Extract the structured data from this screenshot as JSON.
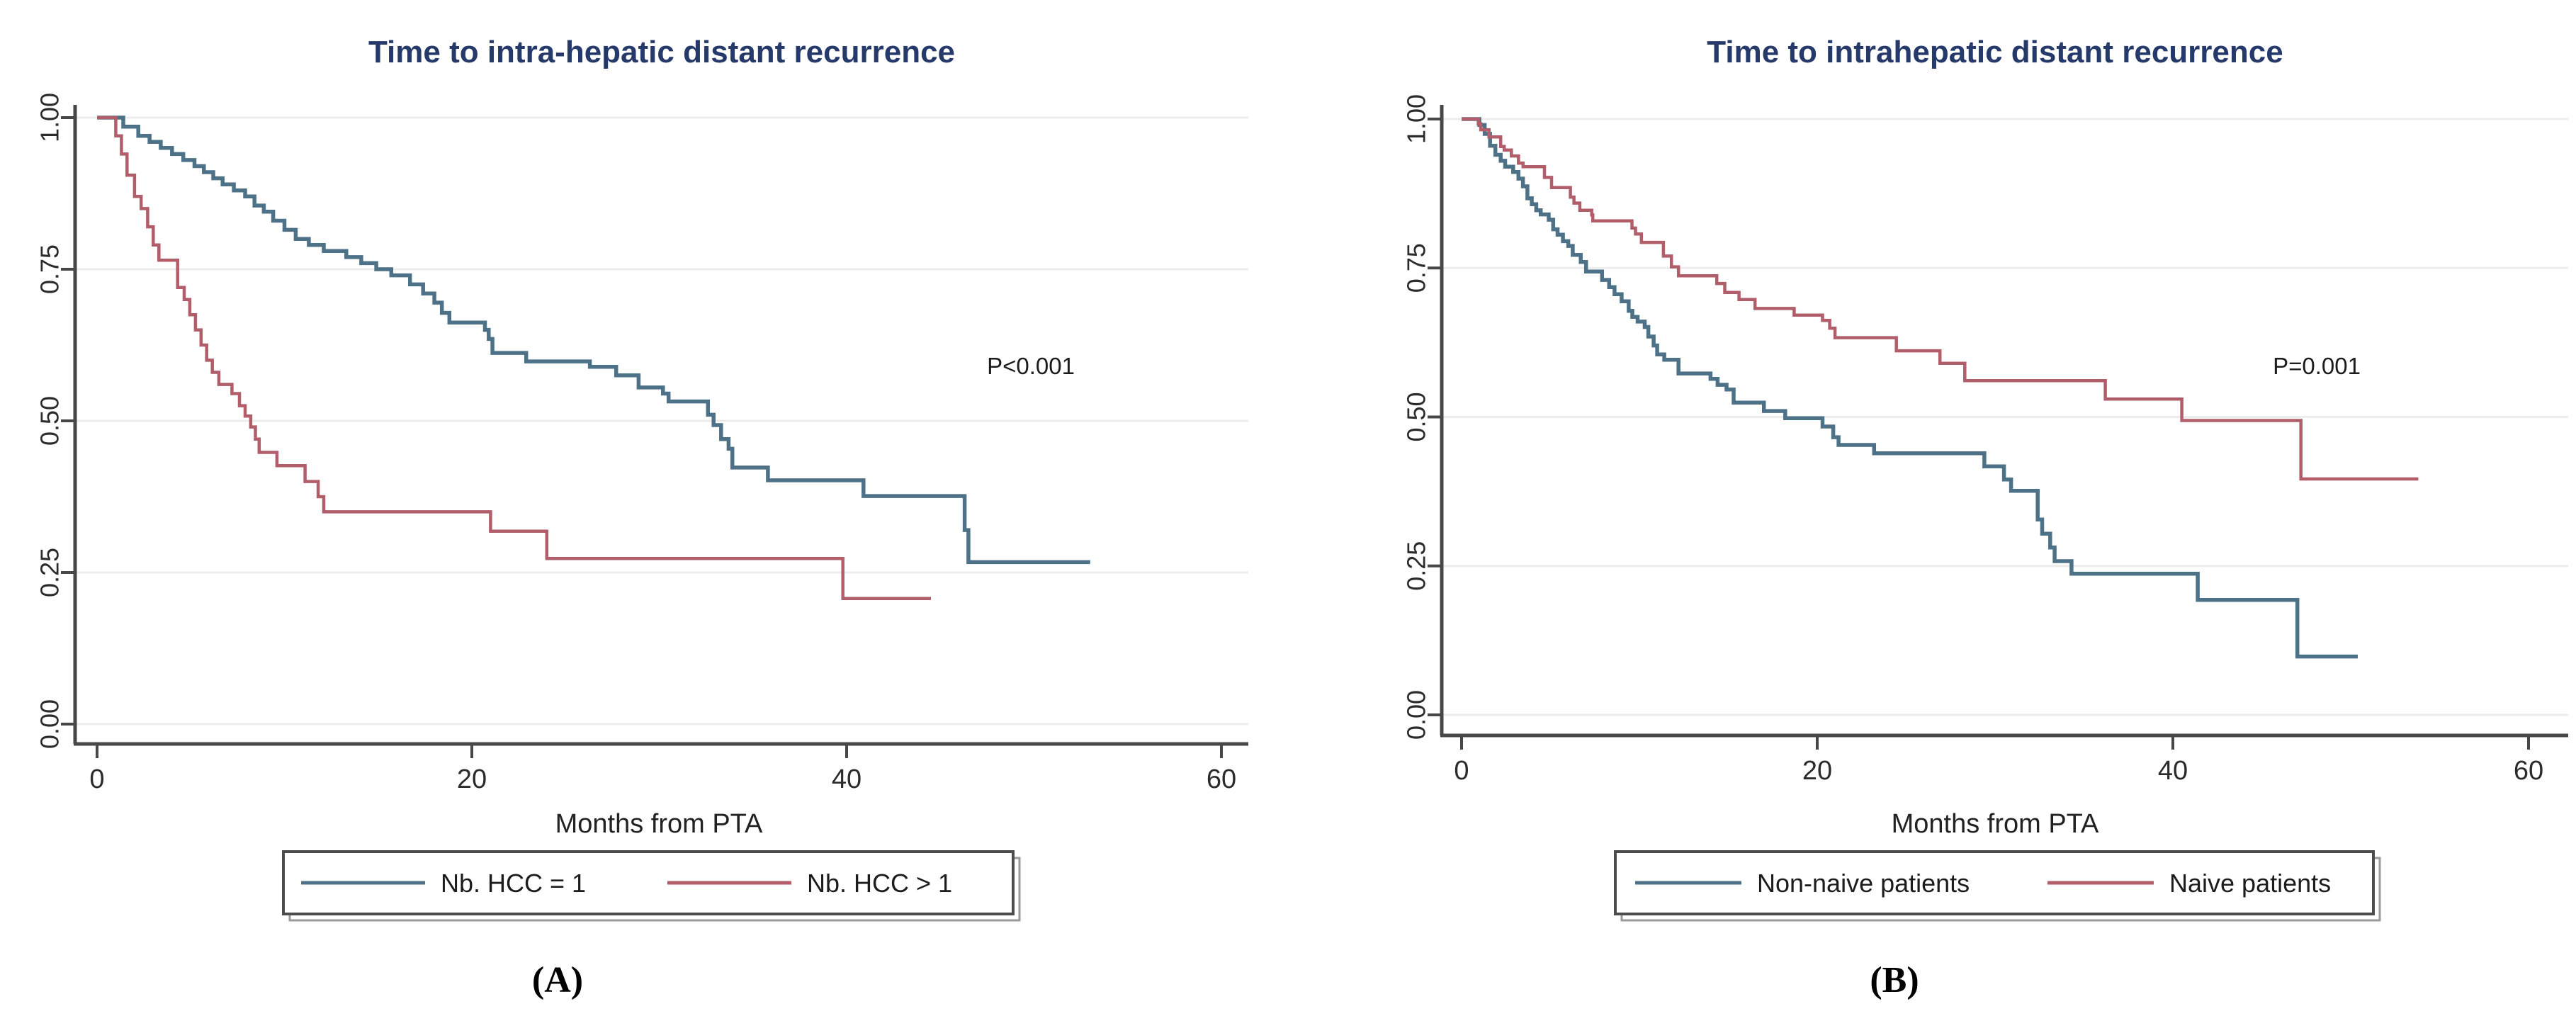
{
  "figure": {
    "background": "#ffffff",
    "title_color": "#26396b",
    "axis_color": "#474747",
    "grid_color": "#ececec",
    "text_color": "#2b2b2b",
    "legend_border": "#4c4c4c"
  },
  "captions": [
    "(A)",
    "(B)"
  ],
  "chart_data": [
    {
      "type": "line",
      "subtype": "kaplan-meier-step",
      "title": "Time to intra-hepatic distant recurrence",
      "xlabel": "Months from PTA",
      "ylabel": "",
      "p_value_text": "P<0.001",
      "xlim": [
        0,
        60
      ],
      "ylim": [
        0.0,
        1.0
      ],
      "grid": true,
      "legend_position": "bottom",
      "x_ticks": [
        0,
        20,
        40,
        60
      ],
      "x_tick_labels": [
        "0",
        "20",
        "40",
        "60"
      ],
      "y_ticks": [
        1.0,
        0.75,
        0.5,
        0.25,
        0.0
      ],
      "y_tick_labels": [
        "1.00",
        "0.75",
        "0.50",
        "0.25",
        "0.00"
      ],
      "series": [
        {
          "name": "Nb. HCC = 1",
          "color": "#4d7288",
          "end_t": 53,
          "points": [
            [
              0,
              1.0
            ],
            [
              1.4,
              0.985
            ],
            [
              2.2,
              0.97
            ],
            [
              2.8,
              0.96
            ],
            [
              3.4,
              0.95
            ],
            [
              4.0,
              0.94
            ],
            [
              4.6,
              0.93
            ],
            [
              5.2,
              0.92
            ],
            [
              5.7,
              0.91
            ],
            [
              6.2,
              0.9
            ],
            [
              6.7,
              0.89
            ],
            [
              7.3,
              0.88
            ],
            [
              7.9,
              0.87
            ],
            [
              8.4,
              0.855
            ],
            [
              8.9,
              0.845
            ],
            [
              9.4,
              0.83
            ],
            [
              10.0,
              0.815
            ],
            [
              10.6,
              0.8
            ],
            [
              11.3,
              0.79
            ],
            [
              12.1,
              0.78
            ],
            [
              13.3,
              0.77
            ],
            [
              14.1,
              0.76
            ],
            [
              14.9,
              0.75
            ],
            [
              15.7,
              0.74
            ],
            [
              16.7,
              0.725
            ],
            [
              17.4,
              0.71
            ],
            [
              18.0,
              0.695
            ],
            [
              18.4,
              0.678
            ],
            [
              18.8,
              0.662
            ],
            [
              20.7,
              0.65
            ],
            [
              20.9,
              0.635
            ],
            [
              21.1,
              0.612
            ],
            [
              22.9,
              0.598
            ],
            [
              26.3,
              0.589
            ],
            [
              27.7,
              0.575
            ],
            [
              28.9,
              0.555
            ],
            [
              30.2,
              0.545
            ],
            [
              30.5,
              0.532
            ],
            [
              32.6,
              0.51
            ],
            [
              32.9,
              0.493
            ],
            [
              33.3,
              0.47
            ],
            [
              33.7,
              0.454
            ],
            [
              33.9,
              0.423
            ],
            [
              35.8,
              0.402
            ],
            [
              40.9,
              0.376
            ],
            [
              46.3,
              0.32
            ],
            [
              46.5,
              0.267
            ]
          ]
        },
        {
          "name": "Nb. HCC > 1",
          "color": "#b15e6a",
          "end_t": 44.5,
          "points": [
            [
              0,
              1.0
            ],
            [
              1.0,
              0.97
            ],
            [
              1.3,
              0.94
            ],
            [
              1.6,
              0.905
            ],
            [
              2.0,
              0.87
            ],
            [
              2.35,
              0.85
            ],
            [
              2.7,
              0.82
            ],
            [
              3.0,
              0.79
            ],
            [
              3.3,
              0.765
            ],
            [
              4.3,
              0.72
            ],
            [
              4.65,
              0.7
            ],
            [
              4.95,
              0.675
            ],
            [
              5.25,
              0.65
            ],
            [
              5.55,
              0.625
            ],
            [
              5.85,
              0.6
            ],
            [
              6.15,
              0.58
            ],
            [
              6.5,
              0.56
            ],
            [
              7.2,
              0.545
            ],
            [
              7.6,
              0.525
            ],
            [
              7.9,
              0.508
            ],
            [
              8.2,
              0.49
            ],
            [
              8.45,
              0.47
            ],
            [
              8.65,
              0.448
            ],
            [
              9.6,
              0.426
            ],
            [
              11.1,
              0.4
            ],
            [
              11.8,
              0.375
            ],
            [
              12.1,
              0.35
            ],
            [
              21.0,
              0.318
            ],
            [
              24.0,
              0.273
            ],
            [
              39.8,
              0.207
            ]
          ]
        }
      ]
    },
    {
      "type": "line",
      "subtype": "kaplan-meier-step",
      "title": "Time to intrahepatic distant recurrence",
      "xlabel": "Months from PTA",
      "ylabel": "",
      "p_value_text": "P=0.001",
      "xlim": [
        0,
        60
      ],
      "ylim": [
        0.0,
        1.0
      ],
      "grid": true,
      "legend_position": "bottom",
      "x_ticks": [
        0,
        20,
        40,
        60
      ],
      "x_tick_labels": [
        "0",
        "20",
        "40",
        "60"
      ],
      "y_ticks": [
        1.0,
        0.75,
        0.5,
        0.25,
        0.0
      ],
      "y_tick_labels": [
        "1.00",
        "0.75",
        "0.50",
        "0.25",
        "0.00"
      ],
      "series": [
        {
          "name": "Non-naive patients",
          "color": "#4d7288",
          "end_t": 50.4,
          "points": [
            [
              0,
              1.0
            ],
            [
              1.0,
              0.99
            ],
            [
              1.3,
              0.975
            ],
            [
              1.6,
              0.955
            ],
            [
              1.9,
              0.94
            ],
            [
              2.2,
              0.93
            ],
            [
              2.45,
              0.92
            ],
            [
              2.9,
              0.911
            ],
            [
              3.2,
              0.9
            ],
            [
              3.45,
              0.887
            ],
            [
              3.7,
              0.867
            ],
            [
              3.95,
              0.857
            ],
            [
              4.2,
              0.847
            ],
            [
              4.45,
              0.84
            ],
            [
              4.9,
              0.831
            ],
            [
              5.15,
              0.815
            ],
            [
              5.4,
              0.806
            ],
            [
              5.7,
              0.795
            ],
            [
              6.0,
              0.787
            ],
            [
              6.25,
              0.772
            ],
            [
              6.7,
              0.76
            ],
            [
              7.0,
              0.744
            ],
            [
              7.9,
              0.73
            ],
            [
              8.3,
              0.718
            ],
            [
              8.6,
              0.706
            ],
            [
              9.0,
              0.694
            ],
            [
              9.4,
              0.678
            ],
            [
              9.6,
              0.668
            ],
            [
              9.9,
              0.66
            ],
            [
              10.3,
              0.651
            ],
            [
              10.5,
              0.635
            ],
            [
              10.8,
              0.62
            ],
            [
              11.0,
              0.605
            ],
            [
              11.4,
              0.596
            ],
            [
              12.2,
              0.573
            ],
            [
              14.0,
              0.564
            ],
            [
              14.4,
              0.554
            ],
            [
              14.9,
              0.546
            ],
            [
              15.3,
              0.524
            ],
            [
              17.0,
              0.51
            ],
            [
              18.2,
              0.498
            ],
            [
              20.3,
              0.484
            ],
            [
              20.9,
              0.466
            ],
            [
              21.2,
              0.453
            ],
            [
              23.2,
              0.439
            ],
            [
              29.4,
              0.417
            ],
            [
              30.5,
              0.395
            ],
            [
              30.9,
              0.376
            ],
            [
              32.4,
              0.328
            ],
            [
              32.65,
              0.304
            ],
            [
              33.1,
              0.281
            ],
            [
              33.35,
              0.258
            ],
            [
              34.3,
              0.237
            ],
            [
              41.4,
              0.193
            ],
            [
              47.0,
              0.098
            ]
          ]
        },
        {
          "name": "Naive patients",
          "color": "#b15e6a",
          "end_t": 53.8,
          "points": [
            [
              0,
              1.0
            ],
            [
              0.94,
              0.992
            ],
            [
              1.08,
              0.982
            ],
            [
              1.54,
              0.97
            ],
            [
              2.2,
              0.954
            ],
            [
              2.4,
              0.948
            ],
            [
              2.8,
              0.938
            ],
            [
              3.2,
              0.926
            ],
            [
              3.46,
              0.92
            ],
            [
              4.66,
              0.902
            ],
            [
              5.06,
              0.885
            ],
            [
              6.12,
              0.869
            ],
            [
              6.32,
              0.859
            ],
            [
              6.65,
              0.847
            ],
            [
              7.32,
              0.839
            ],
            [
              7.38,
              0.829
            ],
            [
              9.58,
              0.817
            ],
            [
              9.78,
              0.807
            ],
            [
              10.11,
              0.793
            ],
            [
              11.35,
              0.77
            ],
            [
              11.8,
              0.752
            ],
            [
              12.2,
              0.737
            ],
            [
              14.35,
              0.724
            ],
            [
              14.8,
              0.709
            ],
            [
              15.6,
              0.697
            ],
            [
              16.5,
              0.682
            ],
            [
              18.7,
              0.671
            ],
            [
              20.3,
              0.662
            ],
            [
              20.7,
              0.649
            ],
            [
              21.0,
              0.633
            ],
            [
              24.45,
              0.611
            ],
            [
              26.9,
              0.59
            ],
            [
              28.3,
              0.561
            ],
            [
              36.2,
              0.53
            ],
            [
              40.5,
              0.494
            ],
            [
              47.2,
              0.396
            ]
          ]
        }
      ]
    }
  ]
}
